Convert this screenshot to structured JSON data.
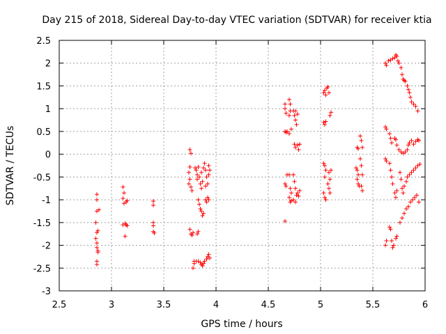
{
  "chart_data": {
    "type": "scatter",
    "title": "Day 215 of 2018, Sidereal Day-to-day VTEC variation (SDTVAR) for receiver ktia",
    "xlabel": "GPS time / hours",
    "ylabel": "SDTVAR / TECUs",
    "xlim": [
      2.5,
      6
    ],
    "ylim": [
      -3,
      2.5
    ],
    "xticks": [
      "2.5",
      "3",
      "3.5",
      "4",
      "4.5",
      "5",
      "5.5",
      "6"
    ],
    "yticks": [
      "-3",
      "-2.5",
      "-2",
      "-1.5",
      "-1",
      "-0.5",
      "0",
      "0.5",
      "1",
      "1.5",
      "2",
      "2.5"
    ],
    "grid": true,
    "marker": "plus",
    "color": "#ff0000",
    "series": [
      {
        "name": "SDTVAR",
        "points": [
          [
            2.86,
            -0.88
          ],
          [
            2.86,
            -1.0
          ],
          [
            2.86,
            -1.25
          ],
          [
            2.85,
            -1.5
          ],
          [
            2.86,
            -1.72
          ],
          [
            2.85,
            -1.85
          ],
          [
            2.86,
            -1.95
          ],
          [
            2.86,
            -2.05
          ],
          [
            2.87,
            -2.12
          ],
          [
            2.86,
            -2.35
          ],
          [
            2.86,
            -2.42
          ],
          [
            2.87,
            -1.68
          ],
          [
            2.87,
            -2.15
          ],
          [
            2.88,
            -1.22
          ],
          [
            3.11,
            -0.72
          ],
          [
            3.12,
            -0.85
          ],
          [
            3.11,
            -0.97
          ],
          [
            3.12,
            -1.08
          ],
          [
            3.11,
            -1.55
          ],
          [
            3.13,
            -1.52
          ],
          [
            3.14,
            -1.55
          ],
          [
            3.13,
            -1.8
          ],
          [
            3.14,
            -1.05
          ],
          [
            3.15,
            -1.02
          ],
          [
            3.15,
            -1.57
          ],
          [
            3.4,
            -1.03
          ],
          [
            3.4,
            -1.12
          ],
          [
            3.4,
            -1.5
          ],
          [
            3.4,
            -1.57
          ],
          [
            3.4,
            -1.7
          ],
          [
            3.41,
            -1.73
          ],
          [
            3.75,
            0.1
          ],
          [
            3.76,
            0.02
          ],
          [
            3.75,
            -0.28
          ],
          [
            3.74,
            -0.4
          ],
          [
            3.75,
            -0.55
          ],
          [
            3.74,
            -0.65
          ],
          [
            3.76,
            -0.72
          ],
          [
            3.77,
            -0.8
          ],
          [
            3.75,
            -1.65
          ],
          [
            3.76,
            -1.75
          ],
          [
            3.77,
            -1.78
          ],
          [
            3.78,
            -1.72
          ],
          [
            3.78,
            -2.5
          ],
          [
            3.79,
            -2.35
          ],
          [
            3.79,
            -2.4
          ],
          [
            3.8,
            -0.3
          ],
          [
            3.81,
            -0.35
          ],
          [
            3.82,
            -0.45
          ],
          [
            3.82,
            -0.55
          ],
          [
            3.83,
            -0.28
          ],
          [
            3.84,
            -0.5
          ],
          [
            3.85,
            -0.65
          ],
          [
            3.86,
            -0.75
          ],
          [
            3.87,
            -0.6
          ],
          [
            3.86,
            -0.4
          ],
          [
            3.88,
            -0.3
          ],
          [
            3.83,
            -1.0
          ],
          [
            3.84,
            -1.1
          ],
          [
            3.85,
            -1.2
          ],
          [
            3.86,
            -1.25
          ],
          [
            3.87,
            -1.35
          ],
          [
            3.88,
            -1.3
          ],
          [
            3.82,
            -1.75
          ],
          [
            3.83,
            -1.7
          ],
          [
            3.81,
            -2.35
          ],
          [
            3.83,
            -2.35
          ],
          [
            3.85,
            -2.38
          ],
          [
            3.86,
            -2.42
          ],
          [
            3.87,
            -2.45
          ],
          [
            3.88,
            -2.4
          ],
          [
            3.89,
            -0.2
          ],
          [
            3.9,
            -0.35
          ],
          [
            3.91,
            -0.5
          ],
          [
            3.9,
            -0.7
          ],
          [
            3.92,
            -0.65
          ],
          [
            3.93,
            -0.45
          ],
          [
            3.93,
            -0.25
          ],
          [
            3.94,
            -0.35
          ],
          [
            3.9,
            -1.0
          ],
          [
            3.91,
            -1.05
          ],
          [
            3.92,
            -0.95
          ],
          [
            3.93,
            -1.0
          ],
          [
            3.91,
            -2.3
          ],
          [
            3.92,
            -2.25
          ],
          [
            3.93,
            -2.2
          ],
          [
            3.94,
            -2.28
          ],
          [
            3.89,
            -2.35
          ],
          [
            4.66,
            1.1
          ],
          [
            4.66,
            1.0
          ],
          [
            4.67,
            0.9
          ],
          [
            4.66,
            0.5
          ],
          [
            4.67,
            0.48
          ],
          [
            4.66,
            -0.65
          ],
          [
            4.67,
            -0.7
          ],
          [
            4.66,
            -1.47
          ],
          [
            4.68,
            -0.45
          ],
          [
            4.68,
            0.5
          ],
          [
            4.7,
            1.2
          ],
          [
            4.71,
            1.1
          ],
          [
            4.7,
            0.85
          ],
          [
            4.71,
            0.95
          ],
          [
            4.72,
            0.55
          ],
          [
            4.7,
            0.45
          ],
          [
            4.71,
            -0.75
          ],
          [
            4.72,
            -0.85
          ],
          [
            4.7,
            -0.95
          ],
          [
            4.71,
            -1.05
          ],
          [
            4.72,
            -1.02
          ],
          [
            4.7,
            -0.45
          ],
          [
            4.74,
            0.95
          ],
          [
            4.75,
            0.85
          ],
          [
            4.76,
            0.75
          ],
          [
            4.76,
            0.95
          ],
          [
            4.77,
            0.65
          ],
          [
            4.78,
            0.88
          ],
          [
            4.75,
            0.22
          ],
          [
            4.76,
            0.15
          ],
          [
            4.78,
            0.2
          ],
          [
            4.79,
            0.1
          ],
          [
            4.8,
            0.22
          ],
          [
            4.74,
            -0.45
          ],
          [
            4.75,
            -0.6
          ],
          [
            4.76,
            -0.75
          ],
          [
            4.77,
            -0.9
          ],
          [
            4.78,
            -0.85
          ],
          [
            4.79,
            -0.92
          ],
          [
            4.8,
            -0.8
          ],
          [
            4.74,
            -1.0
          ],
          [
            4.76,
            -1.05
          ],
          [
            5.03,
            1.35
          ],
          [
            5.04,
            1.4
          ],
          [
            5.05,
            1.3
          ],
          [
            5.06,
            1.45
          ],
          [
            5.03,
            0.7
          ],
          [
            5.04,
            0.65
          ],
          [
            5.05,
            0.72
          ],
          [
            5.03,
            -0.2
          ],
          [
            5.04,
            -0.25
          ],
          [
            5.05,
            -0.35
          ],
          [
            5.04,
            -0.5
          ],
          [
            5.03,
            -0.85
          ],
          [
            5.04,
            -0.95
          ],
          [
            5.05,
            -1.0
          ],
          [
            5.07,
            1.48
          ],
          [
            5.08,
            1.35
          ],
          [
            5.09,
            0.85
          ],
          [
            5.1,
            0.92
          ],
          [
            5.08,
            -0.4
          ],
          [
            5.09,
            -0.55
          ],
          [
            5.07,
            -0.65
          ],
          [
            5.08,
            -0.75
          ],
          [
            5.09,
            -0.85
          ],
          [
            5.1,
            -0.35
          ],
          [
            5.35,
            0.15
          ],
          [
            5.36,
            0.12
          ],
          [
            5.34,
            -0.3
          ],
          [
            5.35,
            -0.35
          ],
          [
            5.36,
            -0.45
          ],
          [
            5.35,
            -0.55
          ],
          [
            5.36,
            -0.65
          ],
          [
            5.37,
            -0.7
          ],
          [
            5.38,
            0.4
          ],
          [
            5.39,
            0.3
          ],
          [
            5.4,
            0.15
          ],
          [
            5.38,
            -0.1
          ],
          [
            5.39,
            -0.25
          ],
          [
            5.4,
            -0.45
          ],
          [
            5.39,
            -0.7
          ],
          [
            5.4,
            -0.8
          ],
          [
            5.62,
            2.0
          ],
          [
            5.63,
            1.95
          ],
          [
            5.62,
            0.6
          ],
          [
            5.63,
            0.55
          ],
          [
            5.62,
            -0.1
          ],
          [
            5.63,
            -0.15
          ],
          [
            5.63,
            -1.9
          ],
          [
            5.62,
            -2.0
          ],
          [
            5.65,
            2.05
          ],
          [
            5.67,
            2.07
          ],
          [
            5.69,
            2.1
          ],
          [
            5.71,
            2.12
          ],
          [
            5.72,
            2.18
          ],
          [
            5.73,
            2.15
          ],
          [
            5.74,
            2.05
          ],
          [
            5.66,
            0.45
          ],
          [
            5.67,
            0.35
          ],
          [
            5.68,
            0.25
          ],
          [
            5.66,
            -0.2
          ],
          [
            5.67,
            -0.35
          ],
          [
            5.68,
            -0.5
          ],
          [
            5.69,
            -0.65
          ],
          [
            5.66,
            -1.6
          ],
          [
            5.67,
            -1.65
          ],
          [
            5.68,
            -1.9
          ],
          [
            5.69,
            -2.05
          ],
          [
            5.7,
            -2.0
          ],
          [
            5.71,
            0.35
          ],
          [
            5.72,
            0.32
          ],
          [
            5.73,
            0.2
          ],
          [
            5.71,
            -0.85
          ],
          [
            5.72,
            -0.95
          ],
          [
            5.73,
            -0.8
          ],
          [
            5.72,
            -1.85
          ],
          [
            5.73,
            -1.8
          ],
          [
            5.75,
            2.0
          ],
          [
            5.77,
            1.9
          ],
          [
            5.78,
            1.75
          ],
          [
            5.79,
            1.65
          ],
          [
            5.8,
            1.62
          ],
          [
            5.81,
            1.6
          ],
          [
            5.83,
            1.5
          ],
          [
            5.84,
            1.42
          ],
          [
            5.85,
            1.35
          ],
          [
            5.86,
            1.25
          ],
          [
            5.87,
            1.15
          ],
          [
            5.89,
            1.1
          ],
          [
            5.91,
            1.05
          ],
          [
            5.93,
            0.95
          ],
          [
            5.75,
            0.1
          ],
          [
            5.77,
            0.05
          ],
          [
            5.79,
            0.02
          ],
          [
            5.81,
            0.05
          ],
          [
            5.83,
            0.1
          ],
          [
            5.84,
            0.2
          ],
          [
            5.85,
            0.25
          ],
          [
            5.87,
            0.3
          ],
          [
            5.89,
            0.22
          ],
          [
            5.91,
            0.28
          ],
          [
            5.93,
            0.32
          ],
          [
            5.94,
            0.3
          ],
          [
            5.76,
            -0.4
          ],
          [
            5.77,
            -0.55
          ],
          [
            5.78,
            -0.75
          ],
          [
            5.79,
            -0.85
          ],
          [
            5.8,
            -0.7
          ],
          [
            5.82,
            -0.6
          ],
          [
            5.83,
            -0.5
          ],
          [
            5.85,
            -0.45
          ],
          [
            5.87,
            -0.4
          ],
          [
            5.89,
            -0.35
          ],
          [
            5.91,
            -0.3
          ],
          [
            5.93,
            -0.25
          ],
          [
            5.95,
            -0.22
          ],
          [
            5.76,
            -1.5
          ],
          [
            5.78,
            -1.4
          ],
          [
            5.8,
            -1.3
          ],
          [
            5.82,
            -1.2
          ],
          [
            5.84,
            -1.15
          ],
          [
            5.86,
            -1.05
          ],
          [
            5.88,
            -1.0
          ],
          [
            5.9,
            -0.95
          ],
          [
            5.92,
            -0.9
          ],
          [
            5.94,
            -1.05
          ]
        ]
      }
    ]
  }
}
